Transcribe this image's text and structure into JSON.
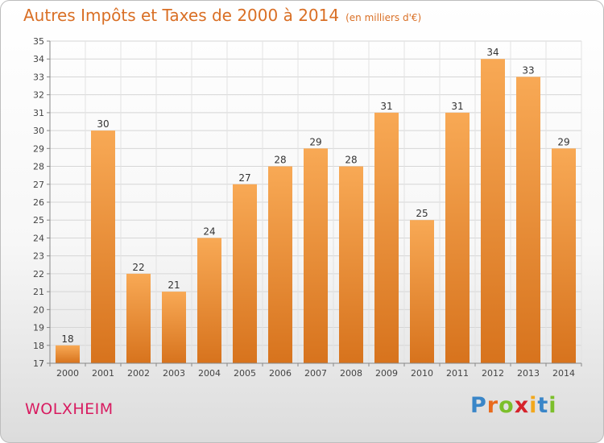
{
  "header": {
    "title": "Autres Impôts et Taxes de 2000 à 2014",
    "unit": "(en milliers d'€)"
  },
  "commune": "WOLXHEIM",
  "logo": {
    "letters": [
      "P",
      "r",
      "o",
      "x",
      "i",
      "t",
      "i"
    ],
    "colors": [
      "#3a86c8",
      "#e96b1d",
      "#7cbf2b",
      "#d6232b",
      "#f2a81d",
      "#3a86c8",
      "#7cbf2b"
    ]
  },
  "colors": {
    "bar_light": "#f8a955",
    "bar_dark": "#d7731d",
    "title": "#d96f25",
    "commune": "#d81b60"
  },
  "chart_data": {
    "type": "bar",
    "title": "Autres Impôts et Taxes de 2000 à 2014",
    "subtitle": "(en milliers d'€)",
    "categories": [
      "2000",
      "2001",
      "2002",
      "2003",
      "2004",
      "2005",
      "2006",
      "2007",
      "2008",
      "2009",
      "2010",
      "2011",
      "2012",
      "2013",
      "2014"
    ],
    "values": [
      18,
      30,
      22,
      21,
      24,
      27,
      28,
      29,
      28,
      31,
      25,
      31,
      34,
      33,
      29
    ],
    "ylim": [
      17,
      35
    ],
    "yticks": [
      "17",
      "18",
      "19",
      "20",
      "21",
      "22",
      "23",
      "24",
      "25",
      "26",
      "27",
      "28",
      "29",
      "30",
      "31",
      "32",
      "33",
      "34",
      "35"
    ],
    "grid": true,
    "legend": "none"
  }
}
